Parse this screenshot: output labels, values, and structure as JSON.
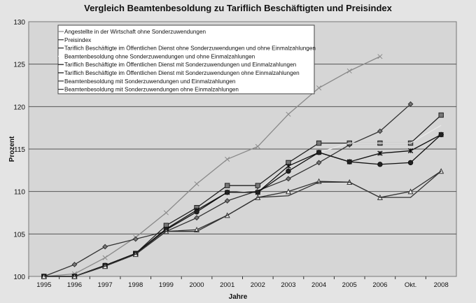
{
  "chart_data": {
    "type": "line",
    "title": "Vergleich Beamtenbesoldung zu Tariflich Beschäftigten und Preisindex",
    "xlabel": "Jahre",
    "ylabel": "Prozent",
    "categories": [
      "1995",
      "1996",
      "1997",
      "1998",
      "1999",
      "2000",
      "2001",
      "2002",
      "2003",
      "2004",
      "2005",
      "2006",
      "Okt.",
      "2008"
    ],
    "ylim": [
      100,
      130
    ],
    "yticks": [
      100,
      105,
      110,
      115,
      120,
      125,
      130
    ],
    "grid": "horizontal",
    "legend_placement": "top-left",
    "series": [
      {
        "name": "Angestellte in der Wirtschaft ohne Sonderzuwendungen",
        "marker": "x",
        "color": "#8a8a8a",
        "values": [
          100,
          100.3,
          102.2,
          104.6,
          107.5,
          110.9,
          113.8,
          115.3,
          119.1,
          122.2,
          124.2,
          125.9,
          null,
          null
        ]
      },
      {
        "name": "Preisindex",
        "marker": "diamond",
        "color": "#333333",
        "values": [
          100,
          101.4,
          103.5,
          104.4,
          105.3,
          106.9,
          108.9,
          110.1,
          111.5,
          113.4,
          115.5,
          117.1,
          120.3,
          null
        ]
      },
      {
        "name": "Tariflich Beschäftigte im Öffentlichen Dienst ohne Sonderzuwendungen und ohne Einmalzahlungen",
        "marker": "square",
        "color": "#222222",
        "values": [
          100,
          100,
          101.2,
          102.7,
          106.0,
          108.1,
          110.7,
          110.7,
          113.4,
          115.7,
          115.7,
          115.7,
          115.7,
          119.0
        ]
      },
      {
        "name": "Beamtenbesoldung ohne Sonderzuwendungen und ohne Einmalzahlungen",
        "marker": "none",
        "color": "#e8e8e8",
        "values": [
          100,
          100,
          101.2,
          102.6,
          105.5,
          107.6,
          109.8,
          110.2,
          112.9,
          114.6,
          115.7,
          115.7,
          115.7,
          117.8
        ]
      },
      {
        "name": "Tariflich Beschäftigte im Öffentlichen Dienst mit Sonderzuwendungen und Einmalzahlungen",
        "marker": "star",
        "color": "#111111",
        "values": [
          100,
          100,
          101.3,
          102.7,
          105.6,
          107.8,
          109.9,
          109.9,
          113.0,
          114.6,
          113.5,
          114.5,
          114.8,
          116.7
        ]
      },
      {
        "name": "Tariflich Beschäftigte im Öffentlichen Dienst mit Sonderzuwendungen ohne Einmalzahlungen",
        "marker": "circle",
        "color": "#111111",
        "values": [
          100,
          100,
          101.3,
          102.7,
          105.5,
          107.6,
          109.9,
          109.9,
          112.4,
          114.6,
          113.5,
          113.2,
          113.4,
          116.7
        ]
      },
      {
        "name": "Beamtenbesoldung mit Sonderzuwendungen und Einmalzahlungen",
        "marker": "triangle",
        "color": "#333333",
        "values": [
          100,
          100,
          101.2,
          102.6,
          105.3,
          105.5,
          107.2,
          109.3,
          110.0,
          111.2,
          111.1,
          109.3,
          110.0,
          112.4
        ]
      },
      {
        "name": "Beamtenbesoldung mit Sonderzuwendungen ohne Einmalzahlungen",
        "marker": "none",
        "color": "#333333",
        "values": [
          100,
          100,
          101.2,
          102.6,
          105.3,
          105.3,
          107.2,
          109.3,
          109.5,
          111.1,
          111.1,
          109.3,
          109.3,
          112.4
        ]
      }
    ]
  }
}
